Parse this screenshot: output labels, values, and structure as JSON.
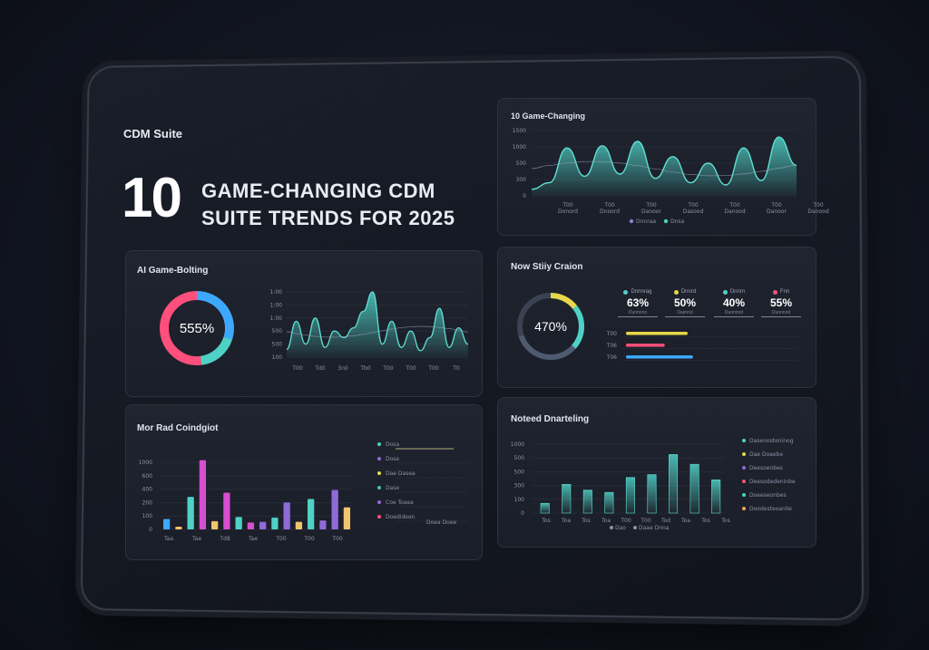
{
  "hero": {
    "brand": "CDM Suite",
    "number": "10",
    "headline_line1": "GAME-CHANGING CDM",
    "headline_line2": "SUITE TRENDS FOR 2025"
  },
  "panel_top_right": {
    "title": "10 Game-Changing",
    "y_ticks": [
      "1500",
      "1000",
      "500",
      "300",
      "0"
    ],
    "x_ticks": [
      "T00",
      "T00",
      "T00",
      "T00",
      "T00",
      "T00",
      "T00"
    ],
    "x_subticks": [
      "Donord",
      "Dnoord",
      "Danoor",
      "Dasood",
      "Danood",
      "Danoor",
      "Danood"
    ],
    "legend": [
      {
        "label": "Dnnraa",
        "color": "#8a7fd0"
      },
      {
        "label": "Dnsa",
        "color": "#4fd1c5"
      }
    ]
  },
  "panel_mid_left": {
    "title": "AI Game-Bolting",
    "donut_value": "555%",
    "y_ticks": [
      "1:00",
      "1:00",
      "1:00",
      "500",
      "500",
      "100"
    ],
    "x_ticks": [
      "T00",
      "Td0",
      "3n0",
      "Tb0",
      "T00",
      "T00",
      "T00",
      "T0"
    ]
  },
  "panel_mid_right": {
    "title": "Now Stiiy Craion",
    "ring_value": "470%",
    "stats": [
      {
        "label": "Dnnnrag",
        "value": "63%",
        "sub": "Dunnnno",
        "color": "#4fd1c5"
      },
      {
        "label": "Dnnrd",
        "value": "50%",
        "sub": "Dasnnd",
        "color": "#e6d84a"
      },
      {
        "label": "Dnnrn",
        "value": "40%",
        "sub": "Dunnnnd",
        "color": "#4fd1c5"
      },
      {
        "label": "Fnn",
        "value": "55%",
        "sub": "Dunnnnd",
        "color": "#ff4f7b"
      }
    ],
    "bar_labels": [
      "T00",
      "T06",
      "T06"
    ]
  },
  "panel_bottom_left": {
    "title": "Mor Rad Coindgiot",
    "y_ticks": [
      "1000",
      "600",
      "400",
      "200",
      "100",
      "0"
    ],
    "x_ticks": [
      "Taa",
      "Tae",
      "Td8",
      "Tae",
      "T00",
      "T00",
      "T00"
    ],
    "legend": [
      {
        "label": "Dosa",
        "color": "#4fd1c5"
      },
      {
        "label": "Dose",
        "color": "#8f6ad8"
      },
      {
        "label": "Dae Dasea",
        "color": "#e6d84a"
      },
      {
        "label": "Dase",
        "color": "#3ec9a7"
      },
      {
        "label": "Coe Toaea",
        "color": "#8f6ad8"
      },
      {
        "label": "Doedideen",
        "color": "#ff4f7b"
      }
    ],
    "legend_extra": "Doea Doee"
  },
  "panel_bottom_right": {
    "title": "Noteed Dnarteling",
    "y_ticks": [
      "1000",
      "500",
      "500",
      "300",
      "100",
      "0"
    ],
    "x_ticks": [
      "Tos",
      "Toa",
      "Tos",
      "Toa",
      "T00",
      "T00",
      "Tod",
      "Toa",
      "Tos",
      "Tos"
    ],
    "bottom_legend": [
      {
        "label": "Dao",
        "color": "#8a93a6"
      },
      {
        "label": "Daae Dnna",
        "color": "#8a93a6"
      }
    ],
    "legend": [
      {
        "label": "Dasenosteninog",
        "color": "#4fd1c5"
      },
      {
        "label": "Dae Doaebe",
        "color": "#e6d84a"
      },
      {
        "label": "Deesoenbes",
        "color": "#8f6ad8"
      },
      {
        "label": "Deesodedeninbe",
        "color": "#ff4f7b"
      },
      {
        "label": "Doeeseonbes",
        "color": "#4fd1c5"
      },
      {
        "label": "Doodesteoanlie",
        "color": "#f2a654"
      }
    ]
  },
  "chart_data": [
    {
      "type": "area",
      "title": "10 Game-Changing",
      "ylim": [
        0,
        1500
      ],
      "series": [
        {
          "values": [
            150,
            300,
            1100,
            450,
            1150,
            500,
            1250,
            400,
            900,
            300,
            750,
            250,
            1100,
            350,
            1350,
            700
          ]
        }
      ]
    },
    {
      "type": "pie",
      "title": "AI Game-Bolting",
      "values": [
        30,
        18,
        52
      ],
      "colors": [
        "#3ea8ff",
        "#4fd1c5",
        "#ff4f7b"
      ],
      "center_label": "555%"
    },
    {
      "type": "area",
      "ylim": [
        0,
        100
      ],
      "series": [
        {
          "values": [
            12,
            55,
            20,
            60,
            15,
            40,
            30,
            45,
            70,
            100,
            20,
            55,
            15,
            40,
            10,
            30,
            75,
            15,
            45,
            20
          ]
        }
      ]
    },
    {
      "type": "bar",
      "title": "Now Stiiy Craion",
      "categories": [
        "T00",
        "T06",
        "T06"
      ],
      "values": [
        0.35,
        0.22,
        0.38
      ],
      "colors": [
        "#e6d84a",
        "#ff4f7b",
        "#3ea8ff"
      ]
    },
    {
      "type": "bar",
      "title": "Mor Rad Coindgiot",
      "ylim": [
        0,
        1100
      ],
      "values": [
        150,
        40,
        470,
        1000,
        120,
        530,
        180,
        100,
        110,
        170,
        390,
        110,
        440,
        130,
        570,
        320
      ],
      "colors": [
        "#3ea8ff",
        "#f2c46d",
        "#4fd1c5",
        "#d64fd0",
        "#f2c46d",
        "#d64fd0",
        "#4fd1c5",
        "#d64fd0",
        "#8f6ad8",
        "#4fd1c5",
        "#8f6ad8",
        "#f2c46d",
        "#4fd1c5",
        "#8f6ad8",
        "#8f6ad8",
        "#f2c46d"
      ]
    },
    {
      "type": "bar",
      "title": "Noteed Dnarteling",
      "ylim": [
        0,
        1200
      ],
      "values": [
        170,
        500,
        400,
        360,
        620,
        670,
        1020,
        850,
        580
      ],
      "colors": [
        "#4fd1c5",
        "#4fd1c5",
        "#4fd1c5",
        "#4fd1c5",
        "#4fd1c5",
        "#4fd1c5",
        "#4fd1c5",
        "#4fd1c5",
        "#4fd1c5"
      ]
    }
  ]
}
